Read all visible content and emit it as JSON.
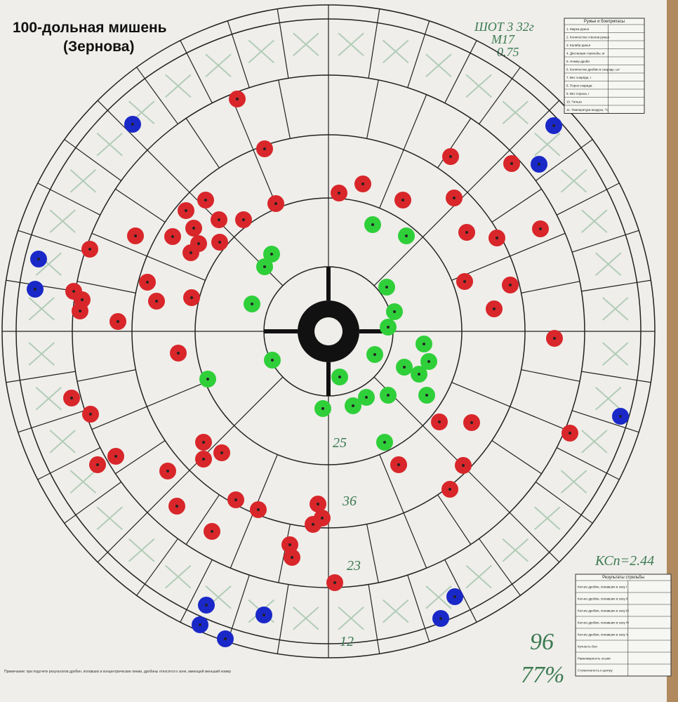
{
  "header": {
    "title": "100-дольная мишень",
    "subtitle": "(Зернова)"
  },
  "annotations": {
    "top": [
      "ШОТ 3 32г",
      "М17",
      "0.75"
    ],
    "rings": [
      "25",
      "36",
      "23",
      "12"
    ],
    "coefficient": "КСп=2.44",
    "total": "96",
    "percent": "77%"
  },
  "equipment_table": {
    "title": "Ружье и боеприпасы",
    "rows": [
      "1. Марка ружья",
      "2. Количество стволов ружья",
      "3. Калибр ружья",
      "4. Дистанция стрельбы, м",
      "5. Номер дроби",
      "6. Количество дробин в снаряде, шт",
      "7. Вес снаряда, г",
      "8. Порох снаряда",
      "9. Вес пороха, г",
      "10. Гильза",
      "11. Температура воздуха, °С"
    ]
  },
  "results_table": {
    "title": "Результаты стрельбы",
    "rows": [
      "Кол-во дробин, попавших в зону I",
      "Кол-во дробин, попавших в зону II",
      "Кол-во дробин, попавших в зону III",
      "Кол-во дробин, попавших в зону IV",
      "Кол-во дробин, попавших в зону V",
      "Кучность боя",
      "Равномерность осыпи",
      "Ступенчатость к центру"
    ]
  },
  "footnote": "Примечание: при подсчете результатов дробин, попавших в концентрические линии, дробины относятся к зоне, имеющей меньший номер"
}
